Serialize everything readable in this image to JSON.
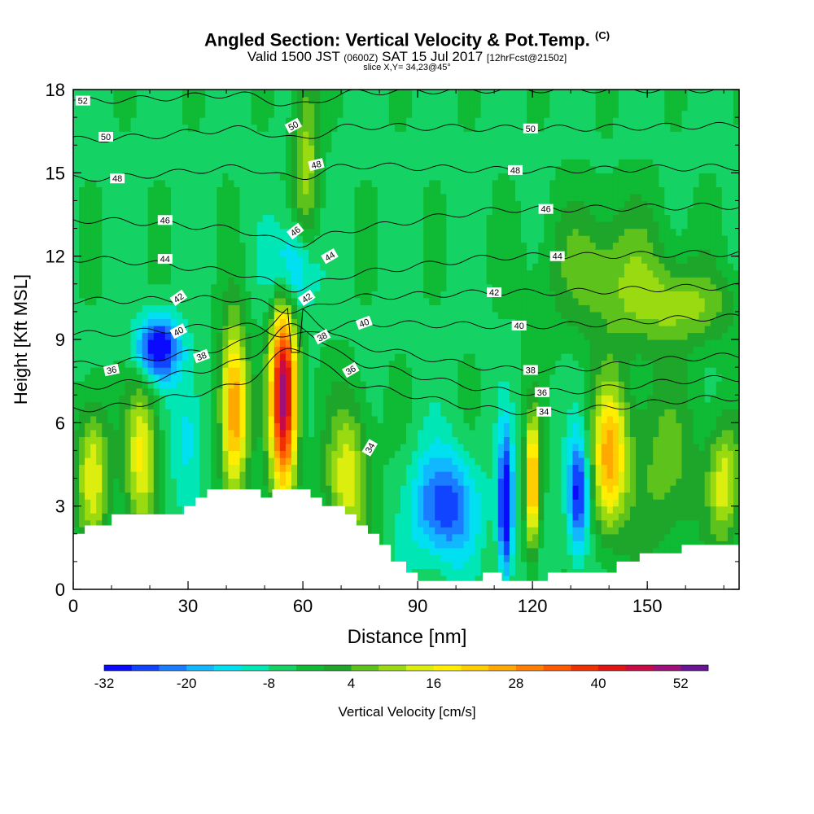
{
  "title": {
    "main": "Angled Section: Vertical Velocity & Pot.Temp.",
    "main_suffix": "(C)",
    "valid_pre": "Valid 1500 JST",
    "valid_utc": "(0600Z)",
    "valid_date": "SAT 15 Jul 2017",
    "valid_fcst": "[12hrFcst@2150z]",
    "slice": "slice X,Y= 34,23@45°"
  },
  "colors": {
    "terrain": "#ffffff",
    "contour": "#000000",
    "palette": [
      "#0a0aff",
      "#1144ff",
      "#1a7dff",
      "#12b8ff",
      "#00e0f0",
      "#00e6b4",
      "#14d264",
      "#0fba35",
      "#1ea62a",
      "#5ec21c",
      "#9ada10",
      "#dcee0e",
      "#ffee00",
      "#ffce00",
      "#ffa800",
      "#ff8000",
      "#ff5a00",
      "#f03000",
      "#e01410",
      "#c80a46",
      "#a0107a",
      "#6a1496"
    ]
  },
  "chart_data": {
    "type": "heatmap",
    "xlabel": "Distance [nm]",
    "ylabel": "Height [Kft MSL]",
    "xlim": [
      0,
      174
    ],
    "ylim": [
      0,
      18
    ],
    "xticks": [
      0,
      30,
      60,
      90,
      120,
      150
    ],
    "yticks": [
      0,
      3,
      6,
      9,
      12,
      15,
      18
    ],
    "background_value": -5,
    "colorbar": {
      "label": "Vertical Velocity [cm/s]",
      "min": -32,
      "max": 56,
      "step": 4,
      "tick_labels": [
        "-32",
        "-20",
        "-8",
        "4",
        "16",
        "28",
        "40",
        "52"
      ]
    },
    "velocity_features": [
      {
        "x": 5,
        "y": 4.2,
        "value": 22,
        "sx": 3,
        "sy": 1.8
      },
      {
        "x": 18,
        "y": 4.8,
        "value": 22,
        "sx": 3,
        "sy": 2.0
      },
      {
        "x": 22,
        "y": 8.7,
        "value": -30,
        "sx": 4,
        "sy": 0.8
      },
      {
        "x": 30,
        "y": 5.5,
        "value": -10,
        "sx": 3,
        "sy": 1.8
      },
      {
        "x": 42,
        "y": 6.5,
        "value": 35,
        "sx": 2.5,
        "sy": 2.2
      },
      {
        "x": 55,
        "y": 7.0,
        "value": 56,
        "sx": 2.5,
        "sy": 2.5
      },
      {
        "x": 57,
        "y": 11.5,
        "value": -20,
        "sx": 4,
        "sy": 1.2
      },
      {
        "x": 61,
        "y": 15.5,
        "value": 15,
        "sx": 2.5,
        "sy": 2.5
      },
      {
        "x": 72,
        "y": 4.0,
        "value": 20,
        "sx": 4,
        "sy": 2.0
      },
      {
        "x": 97,
        "y": 3.0,
        "value": -22,
        "sx": 6,
        "sy": 1.4
      },
      {
        "x": 113,
        "y": 3.0,
        "value": -32,
        "sx": 1.3,
        "sy": 1.8
      },
      {
        "x": 120,
        "y": 3.8,
        "value": 32,
        "sx": 1.3,
        "sy": 1.7
      },
      {
        "x": 132,
        "y": 3.4,
        "value": -26,
        "sx": 2,
        "sy": 1.5
      },
      {
        "x": 140,
        "y": 4.8,
        "value": 26,
        "sx": 3,
        "sy": 1.8
      },
      {
        "x": 152,
        "y": 4.5,
        "value": 10,
        "sx": 10,
        "sy": 2.5
      },
      {
        "x": 170,
        "y": 3.8,
        "value": 18,
        "sx": 3,
        "sy": 1.5
      },
      {
        "x": 140,
        "y": 11.5,
        "value": 12,
        "sx": 12,
        "sy": 1.8
      },
      {
        "x": 160,
        "y": 10.2,
        "value": 12,
        "sx": 10,
        "sy": 1.0
      }
    ],
    "terrain_profile": {
      "x": [
        0,
        3,
        3,
        10,
        10,
        29,
        29,
        32,
        32,
        35,
        35,
        38,
        38,
        49,
        49,
        52,
        52,
        62,
        62,
        65,
        65,
        71,
        71,
        74,
        74,
        77,
        77,
        80,
        80,
        83,
        83,
        87,
        87,
        90,
        90,
        107,
        107,
        112,
        112,
        116,
        116,
        124,
        124,
        129,
        129,
        142,
        142,
        148,
        148,
        152,
        152,
        159,
        159,
        162,
        162,
        174
      ],
      "height": [
        2.0,
        2.0,
        2.3,
        2.3,
        2.7,
        2.7,
        3.0,
        3.0,
        3.3,
        3.3,
        3.6,
        3.6,
        3.6,
        3.6,
        3.3,
        3.3,
        3.6,
        3.6,
        3.3,
        3.3,
        3.0,
        3.0,
        2.7,
        2.7,
        2.3,
        2.3,
        2.0,
        2.0,
        1.6,
        1.6,
        1.0,
        1.0,
        0.6,
        0.6,
        0.3,
        0.3,
        0.6,
        0.6,
        0.3,
        0.3,
        0.3,
        0.3,
        0.6,
        0.6,
        0.6,
        0.6,
        1.0,
        1.0,
        1.3,
        1.3,
        1.3,
        1.3,
        1.6,
        1.6,
        1.6,
        1.6
      ]
    },
    "theta_contours": {
      "levels": [
        52,
        51,
        50,
        49,
        48,
        47,
        46,
        45,
        44,
        43,
        42,
        41,
        40,
        39,
        38,
        37,
        36,
        35,
        34
      ],
      "base_height_at_x": [
        {
          "level": 52,
          "heights_kft_at_x0_60_120_174": [
            17.6,
            17.9,
            18.0,
            18.0
          ]
        },
        {
          "level": 50,
          "heights_kft_at_x0_60_120_174": [
            16.2,
            16.7,
            16.6,
            16.7
          ]
        },
        {
          "level": 48,
          "heights_kft_at_x0_60_120_174": [
            14.8,
            15.3,
            15.1,
            15.2
          ]
        },
        {
          "level": 46,
          "heights_kft_at_x0_60_120_174": [
            13.3,
            12.9,
            13.7,
            13.8
          ]
        },
        {
          "level": 44,
          "heights_kft_at_x0_60_120_174": [
            11.9,
            11.3,
            12.0,
            12.1
          ]
        },
        {
          "level": 42,
          "heights_kft_at_x0_60_120_174": [
            10.4,
            10.5,
            10.7,
            10.9
          ]
        },
        {
          "level": 40,
          "heights_kft_at_x0_60_120_174": [
            9.2,
            9.6,
            9.5,
            9.8
          ]
        },
        {
          "level": 38,
          "heights_kft_at_x0_60_120_174": [
            8.1,
            8.9,
            7.9,
            8.4
          ]
        },
        {
          "level": 36,
          "heights_kft_at_x0_60_120_174": [
            7.3,
            8.3,
            7.1,
            7.6
          ]
        },
        {
          "level": 34,
          "heights_kft_at_x0_60_120_174": [
            6.5,
            7.5,
            6.4,
            6.9
          ]
        }
      ],
      "labels": [
        {
          "text": "52",
          "x": 2.5,
          "y": 17.6,
          "angle": 0
        },
        {
          "text": "50",
          "x": 8.5,
          "y": 16.3,
          "angle": 0
        },
        {
          "text": "48",
          "x": 11.5,
          "y": 14.8,
          "angle": 0
        },
        {
          "text": "46",
          "x": 24,
          "y": 13.3,
          "angle": 0
        },
        {
          "text": "44",
          "x": 24,
          "y": 11.9,
          "angle": 0
        },
        {
          "text": "42",
          "x": 27.5,
          "y": 10.5,
          "angle": -35
        },
        {
          "text": "40",
          "x": 27.5,
          "y": 9.3,
          "angle": -28
        },
        {
          "text": "38",
          "x": 33.5,
          "y": 8.4,
          "angle": -20
        },
        {
          "text": "36",
          "x": 10,
          "y": 7.9,
          "angle": -12
        },
        {
          "text": "50",
          "x": 57.5,
          "y": 16.7,
          "angle": -28
        },
        {
          "text": "48",
          "x": 63.5,
          "y": 15.3,
          "angle": -14
        },
        {
          "text": "46",
          "x": 58,
          "y": 12.9,
          "angle": -38
        },
        {
          "text": "44",
          "x": 67,
          "y": 12.0,
          "angle": -30
        },
        {
          "text": "42",
          "x": 61,
          "y": 10.5,
          "angle": -35
        },
        {
          "text": "40",
          "x": 76,
          "y": 9.6,
          "angle": -20
        },
        {
          "text": "38",
          "x": 65,
          "y": 9.1,
          "angle": -28
        },
        {
          "text": "36",
          "x": 72.5,
          "y": 7.9,
          "angle": -30
        },
        {
          "text": "34",
          "x": 77.5,
          "y": 5.1,
          "angle": -60
        },
        {
          "text": "50",
          "x": 119.5,
          "y": 16.6,
          "angle": 0
        },
        {
          "text": "48",
          "x": 115.5,
          "y": 15.1,
          "angle": 0
        },
        {
          "text": "46",
          "x": 123.5,
          "y": 13.7,
          "angle": 0
        },
        {
          "text": "44",
          "x": 126.5,
          "y": 12.0,
          "angle": 0
        },
        {
          "text": "42",
          "x": 110,
          "y": 10.7,
          "angle": 0
        },
        {
          "text": "40",
          "x": 116.5,
          "y": 9.5,
          "angle": 0
        },
        {
          "text": "38",
          "x": 119.5,
          "y": 7.9,
          "angle": 0
        },
        {
          "text": "36",
          "x": 122.5,
          "y": 7.1,
          "angle": 0
        },
        {
          "text": "34",
          "x": 123,
          "y": 6.4,
          "angle": 0
        }
      ]
    }
  }
}
